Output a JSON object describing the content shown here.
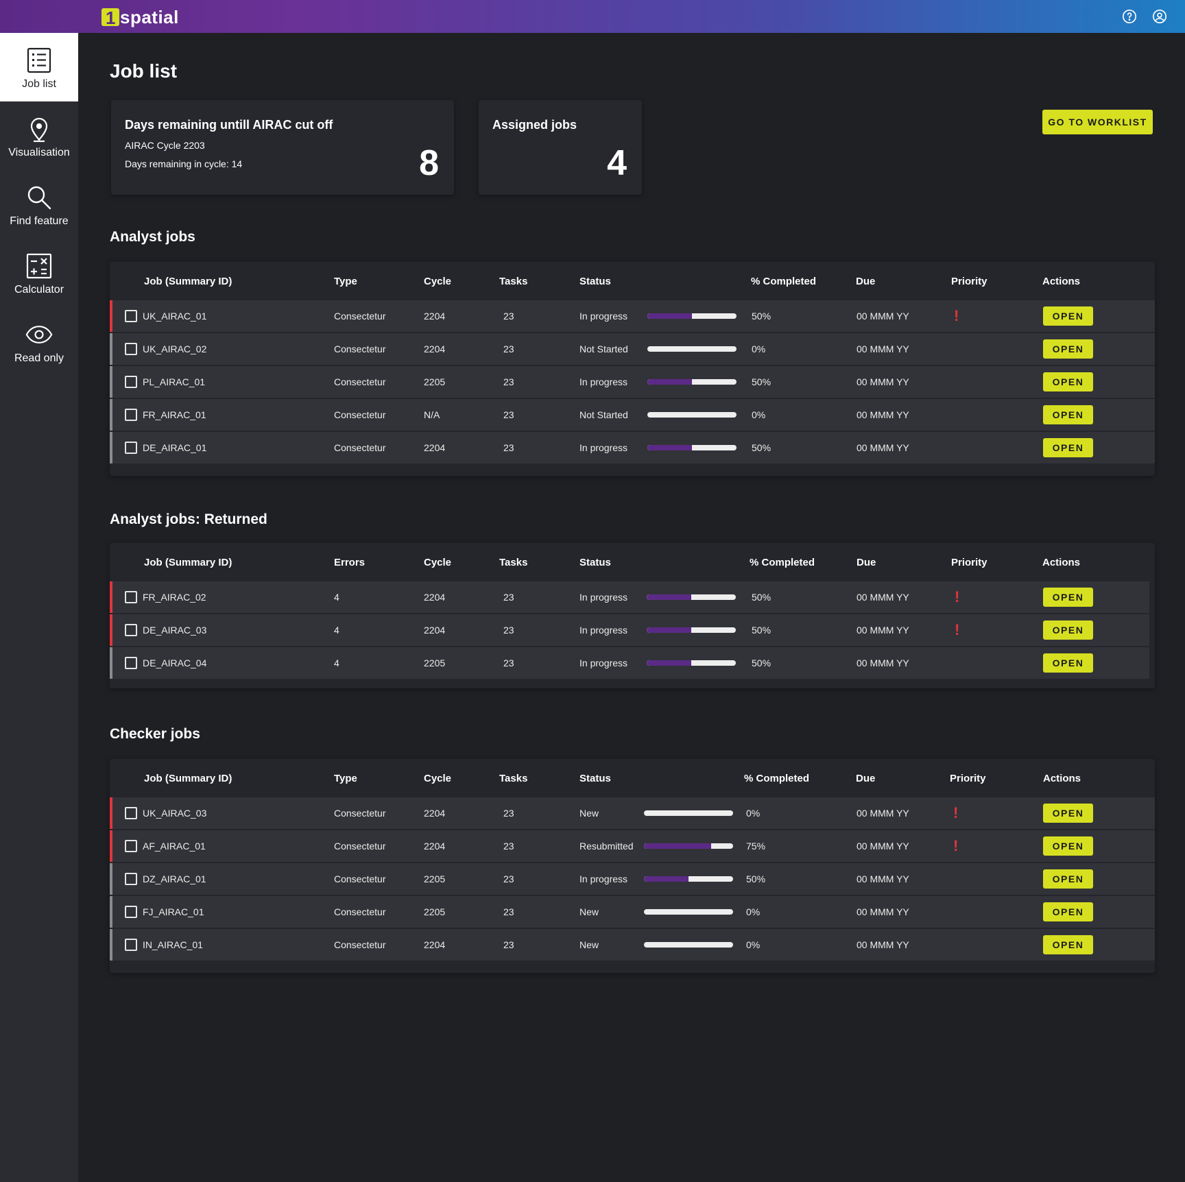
{
  "header": {
    "logo_text": "spatial",
    "logo_mark": "1",
    "icons": [
      "help-circle-icon",
      "account-circle-icon"
    ],
    "gradient": [
      "#5b2a86",
      "#1e7fc4"
    ],
    "accent": "#d6e021",
    "priority_color": "#e0353d"
  },
  "sidebar": {
    "items": [
      {
        "label": "Job list",
        "icon": "list-icon",
        "active": true
      },
      {
        "label": "Visualisation",
        "icon": "map-pin-icon",
        "active": false
      },
      {
        "label": "Find feature",
        "icon": "search-icon",
        "active": false
      },
      {
        "label": "Calculator",
        "icon": "calculator-icon",
        "active": false
      },
      {
        "label": "Read only",
        "icon": "eye-icon",
        "active": false
      }
    ]
  },
  "page": {
    "title": "Job list",
    "worklist_button": "GO TO WORKLIST"
  },
  "cards": {
    "cutoff": {
      "title": "Days remaining untill AIRAC cut off",
      "cycle": "AIRAC Cycle 2203",
      "remaining": "Days remaining in cycle: 14",
      "value": "8"
    },
    "assigned": {
      "title": "Assigned jobs",
      "value": "4"
    }
  },
  "analyst": {
    "title": "Analyst jobs",
    "headers": [
      "Job (Summary ID)",
      "Type",
      "Cycle",
      "Tasks",
      "Status",
      "% Completed",
      "Due",
      "Priority",
      "Actions"
    ],
    "rows": [
      {
        "id": "UK_AIRAC_01",
        "type": "Consectetur",
        "cycle": "2204",
        "tasks": "23",
        "status": "In progress",
        "pct": "50%",
        "fill": 0.5,
        "due": "00 MMM YY",
        "priority": true,
        "action": "OPEN"
      },
      {
        "id": "UK_AIRAC_02",
        "type": "Consectetur",
        "cycle": "2204",
        "tasks": "23",
        "status": "Not Started",
        "pct": "0%",
        "fill": 0,
        "due": "00 MMM YY",
        "priority": false,
        "action": "OPEN"
      },
      {
        "id": "PL_AIRAC_01",
        "type": "Consectetur",
        "cycle": "2205",
        "tasks": "23",
        "status": "In progress",
        "pct": "50%",
        "fill": 0.5,
        "due": "00 MMM YY",
        "priority": false,
        "action": "OPEN"
      },
      {
        "id": "FR_AIRAC_01",
        "type": "Consectetur",
        "cycle": "N/A",
        "tasks": "23",
        "status": "Not Started",
        "pct": "0%",
        "fill": 0,
        "due": "00 MMM YY",
        "priority": false,
        "action": "OPEN"
      },
      {
        "id": "DE_AIRAC_01",
        "type": "Consectetur",
        "cycle": "2204",
        "tasks": "23",
        "status": "In progress",
        "pct": "50%",
        "fill": 0.5,
        "due": "00 MMM YY",
        "priority": false,
        "action": "OPEN"
      }
    ]
  },
  "returned": {
    "title": "Analyst jobs: Returned",
    "headers": [
      "Job (Summary ID)",
      "Errors",
      "Cycle",
      "Tasks",
      "Status",
      "% Completed",
      "Due",
      "Priority",
      "Actions"
    ],
    "rows": [
      {
        "id": "FR_AIRAC_02",
        "type": "4",
        "cycle": "2204",
        "tasks": "23",
        "status": "In progress",
        "pct": "50%",
        "fill": 0.5,
        "due": "00 MMM YY",
        "priority": true,
        "action": "OPEN"
      },
      {
        "id": "DE_AIRAC_03",
        "type": "4",
        "cycle": "2204",
        "tasks": "23",
        "status": "In progress",
        "pct": "50%",
        "fill": 0.5,
        "due": "00 MMM YY",
        "priority": true,
        "action": "OPEN"
      },
      {
        "id": "DE_AIRAC_04",
        "type": "4",
        "cycle": "2205",
        "tasks": "23",
        "status": "In progress",
        "pct": "50%",
        "fill": 0.5,
        "due": "00 MMM YY",
        "priority": false,
        "action": "OPEN"
      }
    ]
  },
  "checker": {
    "title": "Checker jobs",
    "headers": [
      "Job (Summary ID)",
      "Type",
      "Cycle",
      "Tasks",
      "Status",
      "% Completed",
      "Due",
      "Priority",
      "Actions"
    ],
    "rows": [
      {
        "id": "UK_AIRAC_03",
        "type": "Consectetur",
        "cycle": "2204",
        "tasks": "23",
        "status": "New",
        "pct": "0%",
        "fill": 0,
        "due": "00 MMM YY",
        "priority": true,
        "action": "OPEN"
      },
      {
        "id": "AF_AIRAC_01",
        "type": "Consectetur",
        "cycle": "2204",
        "tasks": "23",
        "status": "Resubmitted",
        "pct": "75%",
        "fill": 0.75,
        "due": "00 MMM YY",
        "priority": true,
        "action": "OPEN"
      },
      {
        "id": "DZ_AIRAC_01",
        "type": "Consectetur",
        "cycle": "2205",
        "tasks": "23",
        "status": "In progress",
        "pct": "50%",
        "fill": 0.5,
        "due": "00 MMM YY",
        "priority": false,
        "action": "OPEN"
      },
      {
        "id": "FJ_AIRAC_01",
        "type": "Consectetur",
        "cycle": "2205",
        "tasks": "23",
        "status": "New",
        "pct": "0%",
        "fill": 0,
        "due": "00 MMM YY",
        "priority": false,
        "action": "OPEN"
      },
      {
        "id": "IN_AIRAC_01",
        "type": "Consectetur",
        "cycle": "2204",
        "tasks": "23",
        "status": "New",
        "pct": "0%",
        "fill": 0,
        "due": "00 MMM YY",
        "priority": false,
        "action": "OPEN"
      }
    ]
  }
}
